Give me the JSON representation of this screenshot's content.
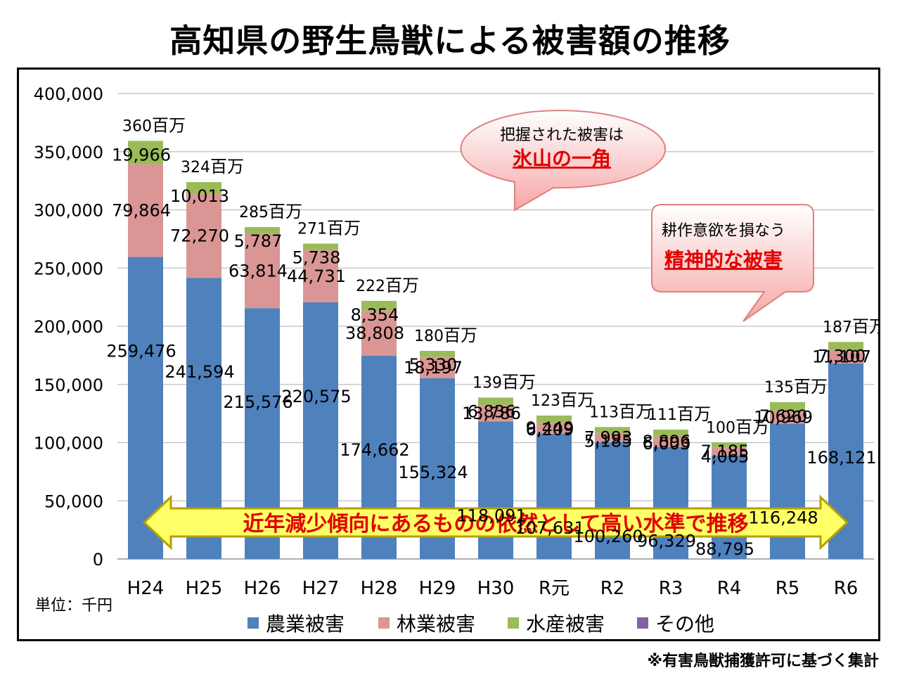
{
  "title": "高知県の野生鳥獣による被害額の推移",
  "unit_label": "単位：千円",
  "footnote": "※有害鳥獣捕獲許可に基づく集計",
  "banner_text": "近年減少傾向にあるものの依然として高い水準で推移",
  "callout1": {
    "line1": "把握された被害は",
    "line2": "氷山の一角"
  },
  "callout2": {
    "line1": "耕作意欲を損なう",
    "line2": "精神的な被害"
  },
  "colors": {
    "agri": "#4F81BD",
    "forest": "#D99694",
    "fish": "#9BBB59",
    "other": "#8064A2",
    "banner": "#FFFF66",
    "emph": "#FF0000"
  },
  "chart_data": {
    "type": "bar",
    "stacked": true,
    "categories": [
      "H24",
      "H25",
      "H26",
      "H27",
      "H28",
      "H29",
      "H30",
      "R元",
      "R2",
      "R3",
      "R4",
      "R5",
      "R6"
    ],
    "series": [
      {
        "name": "農業被害",
        "values": [
          259476,
          241594,
          215576,
          220575,
          174662,
          155324,
          118091,
          107631,
          100260,
          96329,
          88795,
          116248,
          168121
        ]
      },
      {
        "name": "林業被害",
        "values": [
          79864,
          72270,
          63814,
          44731,
          38808,
          18197,
          13786,
          9449,
          7993,
          8896,
          7185,
          10969,
          11107
        ]
      },
      {
        "name": "水産被害",
        "values": [
          19966,
          10013,
          5787,
          5738,
          8354,
          5330,
          6836,
          6209,
          5185,
          6003,
          4065,
          7620,
          7300
        ]
      },
      {
        "name": "その他",
        "values": [
          0,
          0,
          0,
          0,
          0,
          0,
          0,
          0,
          0,
          0,
          0,
          0,
          0
        ]
      }
    ],
    "labels": {
      "agri": [
        "259,476",
        "241,594",
        "215,576",
        "220,575",
        "174,662",
        "155,324",
        "118,091",
        "107,631",
        "100,260",
        "96,329",
        "88,795",
        "116,248",
        "168,121"
      ],
      "forest": [
        "79,864",
        "72,270",
        "63,814",
        "44,731",
        "38,808",
        "18,197",
        "13,786",
        "9,449",
        "7,993",
        "8,896",
        "7,185",
        "10,969",
        "11,107"
      ],
      "fish": [
        "19,966",
        "10,013",
        "5,787",
        "5,738",
        "8,354",
        "5,330",
        "6,836",
        "6,209",
        "5,185",
        "6,003",
        "4,065",
        "7,620",
        "7,300"
      ]
    },
    "totals_num": [
      "360",
      "324",
      "285",
      "271",
      "222",
      "180",
      "139",
      "123",
      "113",
      "111",
      "100",
      "135",
      "187"
    ],
    "totals_unit": "百万",
    "y_ticks": [
      0,
      50000,
      100000,
      150000,
      200000,
      250000,
      300000,
      350000,
      400000
    ],
    "y_tick_labels": [
      "0",
      "50,000",
      "100,000",
      "150,000",
      "200,000",
      "250,000",
      "300,000",
      "350,000",
      "400,000"
    ],
    "ylim": [
      0,
      400000
    ],
    "grid": true,
    "legend_position": "bottom"
  }
}
